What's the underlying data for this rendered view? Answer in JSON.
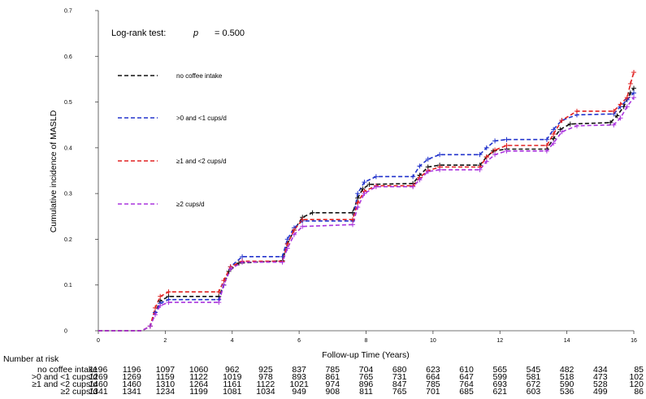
{
  "chart_data": {
    "type": "line",
    "title": "",
    "xlabel": "Follow-up Time (Years)",
    "ylabel": "Cumulative incidence of MASLD",
    "xlim": [
      0,
      16
    ],
    "ylim": [
      0,
      0.7
    ],
    "x_ticks": [
      "0",
      "2",
      "4",
      "6",
      "8",
      "10",
      "12",
      "14",
      "16"
    ],
    "y_ticks": [
      "0",
      "0.1",
      "0.2",
      "0.3",
      "0.4",
      "0.5",
      "0.6",
      "0.7"
    ],
    "grid": false,
    "annotation": {
      "label": "Log-rank test:",
      "p_symbol": "p",
      "p_value_text": "= 0.500",
      "p_value": 0.5
    },
    "series": [
      {
        "name": "no coffee intake",
        "color": "#111111",
        "points": [
          [
            0,
            0
          ],
          [
            1.3,
            0
          ],
          [
            1.55,
            0.01
          ],
          [
            1.7,
            0.04
          ],
          [
            1.85,
            0.065
          ],
          [
            2.1,
            0.075
          ],
          [
            3.6,
            0.075
          ],
          [
            3.75,
            0.1
          ],
          [
            3.9,
            0.13
          ],
          [
            4.2,
            0.148
          ],
          [
            5.5,
            0.153
          ],
          [
            5.65,
            0.19
          ],
          [
            5.85,
            0.22
          ],
          [
            6.1,
            0.248
          ],
          [
            6.4,
            0.258
          ],
          [
            7.6,
            0.258
          ],
          [
            7.75,
            0.29
          ],
          [
            7.9,
            0.31
          ],
          [
            8.1,
            0.32
          ],
          [
            9.4,
            0.322
          ],
          [
            9.6,
            0.34
          ],
          [
            9.85,
            0.358
          ],
          [
            10.2,
            0.362
          ],
          [
            11.4,
            0.362
          ],
          [
            11.6,
            0.38
          ],
          [
            11.8,
            0.393
          ],
          [
            12.2,
            0.397
          ],
          [
            13.4,
            0.397
          ],
          [
            13.6,
            0.42
          ],
          [
            13.8,
            0.44
          ],
          [
            14.1,
            0.452
          ],
          [
            15.3,
            0.455
          ],
          [
            15.5,
            0.47
          ],
          [
            15.7,
            0.49
          ],
          [
            15.9,
            0.52
          ],
          [
            16,
            0.53
          ]
        ]
      },
      {
        "name": ">0 and <1 cups/d",
        "color": "#2233cc",
        "points": [
          [
            0,
            0
          ],
          [
            1.3,
            0
          ],
          [
            1.55,
            0.01
          ],
          [
            1.7,
            0.04
          ],
          [
            1.85,
            0.06
          ],
          [
            2.1,
            0.068
          ],
          [
            3.6,
            0.068
          ],
          [
            3.75,
            0.1
          ],
          [
            3.95,
            0.14
          ],
          [
            4.3,
            0.162
          ],
          [
            5.5,
            0.162
          ],
          [
            5.65,
            0.2
          ],
          [
            5.85,
            0.225
          ],
          [
            6.1,
            0.24
          ],
          [
            7.6,
            0.24
          ],
          [
            7.75,
            0.3
          ],
          [
            7.95,
            0.325
          ],
          [
            8.3,
            0.337
          ],
          [
            9.4,
            0.337
          ],
          [
            9.6,
            0.36
          ],
          [
            9.85,
            0.375
          ],
          [
            10.2,
            0.385
          ],
          [
            11.4,
            0.385
          ],
          [
            11.6,
            0.4
          ],
          [
            11.85,
            0.415
          ],
          [
            12.2,
            0.418
          ],
          [
            13.4,
            0.418
          ],
          [
            13.6,
            0.44
          ],
          [
            13.85,
            0.46
          ],
          [
            14.3,
            0.472
          ],
          [
            15.4,
            0.474
          ],
          [
            15.6,
            0.49
          ],
          [
            15.8,
            0.505
          ],
          [
            16,
            0.52
          ]
        ]
      },
      {
        "name": "≥1 and <2 cups/d",
        "color": "#e02020",
        "points": [
          [
            0,
            0
          ],
          [
            1.3,
            0
          ],
          [
            1.55,
            0.01
          ],
          [
            1.7,
            0.05
          ],
          [
            1.85,
            0.075
          ],
          [
            2.1,
            0.085
          ],
          [
            3.6,
            0.085
          ],
          [
            3.75,
            0.11
          ],
          [
            3.95,
            0.14
          ],
          [
            4.3,
            0.152
          ],
          [
            5.5,
            0.152
          ],
          [
            5.65,
            0.19
          ],
          [
            5.85,
            0.22
          ],
          [
            6.1,
            0.243
          ],
          [
            7.6,
            0.243
          ],
          [
            7.75,
            0.28
          ],
          [
            7.95,
            0.305
          ],
          [
            8.3,
            0.317
          ],
          [
            9.4,
            0.317
          ],
          [
            9.6,
            0.335
          ],
          [
            9.85,
            0.35
          ],
          [
            10.2,
            0.358
          ],
          [
            11.4,
            0.358
          ],
          [
            11.6,
            0.38
          ],
          [
            11.85,
            0.395
          ],
          [
            12.2,
            0.405
          ],
          [
            13.4,
            0.405
          ],
          [
            13.6,
            0.43
          ],
          [
            13.85,
            0.46
          ],
          [
            14.3,
            0.48
          ],
          [
            15.4,
            0.48
          ],
          [
            15.6,
            0.495
          ],
          [
            15.8,
            0.51
          ],
          [
            15.9,
            0.54
          ],
          [
            16,
            0.565
          ]
        ]
      },
      {
        "name": "≥2 cups/d",
        "color": "#aa33dd",
        "points": [
          [
            0,
            0
          ],
          [
            1.3,
            0
          ],
          [
            1.55,
            0.01
          ],
          [
            1.7,
            0.035
          ],
          [
            1.85,
            0.055
          ],
          [
            2.1,
            0.062
          ],
          [
            3.6,
            0.062
          ],
          [
            3.75,
            0.1
          ],
          [
            3.95,
            0.135
          ],
          [
            4.3,
            0.15
          ],
          [
            5.5,
            0.15
          ],
          [
            5.65,
            0.18
          ],
          [
            5.85,
            0.21
          ],
          [
            6.1,
            0.228
          ],
          [
            7.6,
            0.232
          ],
          [
            7.75,
            0.27
          ],
          [
            7.95,
            0.3
          ],
          [
            8.3,
            0.315
          ],
          [
            9.4,
            0.315
          ],
          [
            9.6,
            0.33
          ],
          [
            9.85,
            0.348
          ],
          [
            10.2,
            0.352
          ],
          [
            11.4,
            0.352
          ],
          [
            11.6,
            0.37
          ],
          [
            11.85,
            0.385
          ],
          [
            12.2,
            0.393
          ],
          [
            13.4,
            0.393
          ],
          [
            13.6,
            0.41
          ],
          [
            13.85,
            0.435
          ],
          [
            14.3,
            0.448
          ],
          [
            15.4,
            0.45
          ],
          [
            15.6,
            0.465
          ],
          [
            15.8,
            0.49
          ],
          [
            16,
            0.51
          ]
        ]
      }
    ],
    "risk_table": {
      "title": "Number at risk",
      "times": [
        0,
        1,
        2,
        3,
        4,
        5,
        6,
        7,
        8,
        9,
        10,
        11,
        12,
        13,
        14,
        15,
        16
      ],
      "rows": [
        {
          "label": "no coffee intake",
          "values": [
            "1196",
            "1196",
            "1097",
            "1060",
            "962",
            "925",
            "837",
            "785",
            "704",
            "680",
            "623",
            "610",
            "565",
            "545",
            "482",
            "434",
            "85"
          ]
        },
        {
          "label": ">0 and <1 cups/d",
          "values": [
            "1269",
            "1269",
            "1159",
            "1122",
            "1019",
            "978",
            "893",
            "861",
            "765",
            "731",
            "664",
            "647",
            "599",
            "581",
            "518",
            "473",
            "102"
          ]
        },
        {
          "label": "≥1 and <2 cups/d",
          "values": [
            "1460",
            "1460",
            "1310",
            "1264",
            "1161",
            "1122",
            "1021",
            "974",
            "896",
            "847",
            "785",
            "764",
            "693",
            "672",
            "590",
            "528",
            "120"
          ]
        },
        {
          "label": "≥2 cups/d",
          "values": [
            "1341",
            "1341",
            "1234",
            "1199",
            "1081",
            "1034",
            "949",
            "908",
            "811",
            "765",
            "701",
            "685",
            "621",
            "603",
            "536",
            "499",
            "86"
          ]
        }
      ]
    }
  }
}
